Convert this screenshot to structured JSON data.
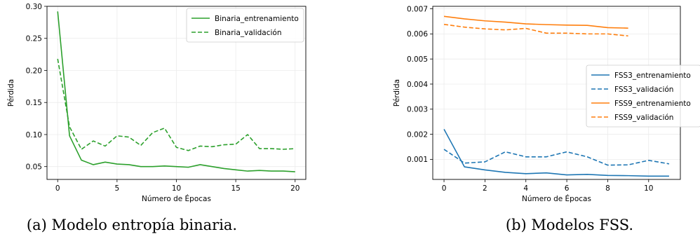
{
  "chart_data": [
    {
      "type": "line",
      "xlabel": "Número de Épocas",
      "ylabel": "Pérdida",
      "xlim": [
        -0.9,
        20.9
      ],
      "ylim": [
        0.03,
        0.3
      ],
      "xticks": [
        0,
        5,
        10,
        15,
        20
      ],
      "yticks": [
        0.05,
        0.1,
        0.15,
        0.2,
        0.25,
        0.3
      ],
      "ytick_labels": [
        "0.05",
        "0.10",
        "0.15",
        "0.20",
        "0.25",
        "0.30"
      ],
      "grid": true,
      "legend_position": "top-right",
      "caption": "(a) Modelo entropía binaria.",
      "series": [
        {
          "name": "Binaria_entrenamiento",
          "color": "#2ca02c",
          "dash": "solid",
          "x": [
            0,
            1,
            2,
            3,
            4,
            5,
            6,
            7,
            8,
            9,
            10,
            11,
            12,
            13,
            14,
            15,
            16,
            17,
            18,
            19,
            20
          ],
          "values": [
            0.292,
            0.098,
            0.06,
            0.053,
            0.057,
            0.054,
            0.053,
            0.05,
            0.05,
            0.051,
            0.05,
            0.049,
            0.053,
            0.05,
            0.047,
            0.045,
            0.043,
            0.044,
            0.043,
            0.043,
            0.042
          ]
        },
        {
          "name": "Binaria_validación",
          "color": "#2ca02c",
          "dash": "dashed",
          "x": [
            0,
            1,
            2,
            3,
            4,
            5,
            6,
            7,
            8,
            9,
            10,
            11,
            12,
            13,
            14,
            15,
            16,
            17,
            18,
            19,
            20
          ],
          "values": [
            0.218,
            0.112,
            0.077,
            0.09,
            0.082,
            0.098,
            0.096,
            0.083,
            0.103,
            0.11,
            0.08,
            0.075,
            0.082,
            0.081,
            0.084,
            0.085,
            0.1,
            0.078,
            0.078,
            0.077,
            0.078
          ]
        }
      ]
    },
    {
      "type": "line",
      "xlabel": "Número de Épocas",
      "ylabel": "Pérdida",
      "xlim": [
        -0.55,
        11.55
      ],
      "ylim": [
        0.0002,
        0.0071
      ],
      "xticks": [
        0,
        2,
        4,
        6,
        8,
        10
      ],
      "yticks": [
        0.001,
        0.002,
        0.003,
        0.004,
        0.005,
        0.006,
        0.007
      ],
      "ytick_labels": [
        "0.001",
        "0.002",
        "0.003",
        "0.004",
        "0.005",
        "0.006",
        "0.007"
      ],
      "grid": true,
      "legend_position": "center-right",
      "caption": "(b) Modelos FSS.",
      "series": [
        {
          "name": "FSS3_entrenamiento",
          "color": "#1f77b4",
          "dash": "solid",
          "x": [
            0,
            1,
            2,
            3,
            4,
            5,
            6,
            7,
            8,
            9,
            10,
            11
          ],
          "values": [
            0.0022,
            0.0007,
            0.00058,
            0.00048,
            0.00043,
            0.00046,
            0.00038,
            0.0004,
            0.00036,
            0.00035,
            0.00033,
            0.00033
          ]
        },
        {
          "name": "FSS3_validación",
          "color": "#1f77b4",
          "dash": "dashed",
          "x": [
            0,
            1,
            2,
            3,
            4,
            5,
            6,
            7,
            8,
            9,
            10,
            11
          ],
          "values": [
            0.0014,
            0.00085,
            0.0009,
            0.0013,
            0.0011,
            0.0011,
            0.0013,
            0.0011,
            0.00077,
            0.00078,
            0.00096,
            0.00082
          ]
        },
        {
          "name": "FSS9_entrenamiento",
          "color": "#ff7f0e",
          "dash": "solid",
          "x": [
            0,
            1,
            2,
            3,
            4,
            5,
            6,
            7,
            8,
            9
          ],
          "values": [
            0.0067,
            0.0066,
            0.00652,
            0.00647,
            0.0064,
            0.00637,
            0.00635,
            0.00634,
            0.00625,
            0.00623
          ]
        },
        {
          "name": "FSS9_validación",
          "color": "#ff7f0e",
          "dash": "dashed",
          "x": [
            0,
            1,
            2,
            3,
            4,
            5,
            6,
            7,
            8,
            9
          ],
          "values": [
            0.00638,
            0.00627,
            0.0062,
            0.00616,
            0.00622,
            0.00603,
            0.00603,
            0.006,
            0.006,
            0.00592
          ]
        }
      ]
    }
  ]
}
